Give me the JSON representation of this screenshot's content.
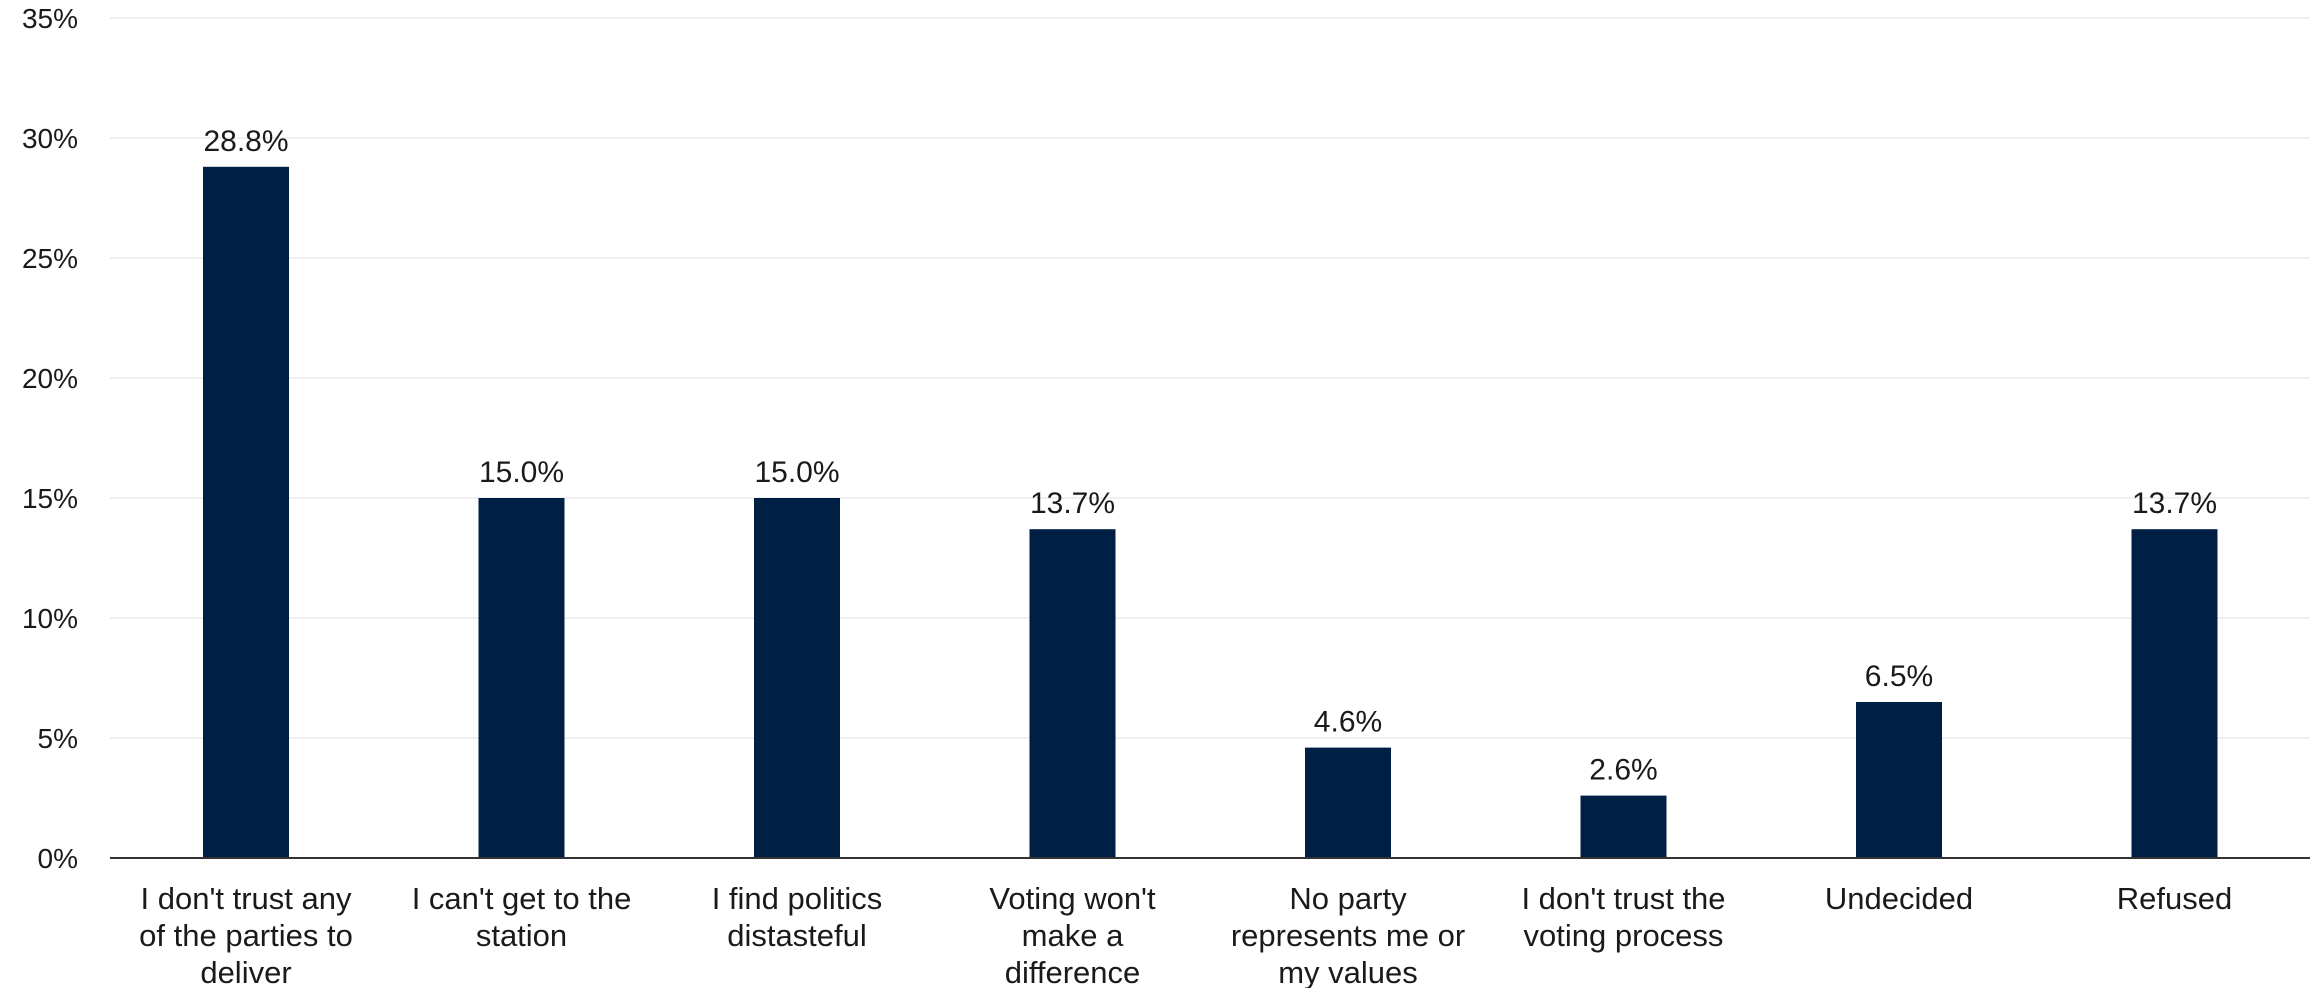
{
  "chart_data": {
    "type": "bar",
    "title": "",
    "xlabel": "",
    "ylabel": "",
    "categories": [
      [
        "I don't trust any",
        "of the parties to",
        "deliver"
      ],
      [
        "I can't get to the",
        "station"
      ],
      [
        "I find politics",
        "distasteful"
      ],
      [
        "Voting won't",
        "make a",
        "difference"
      ],
      [
        "No party",
        "represents me or",
        "my values"
      ],
      [
        "I don't trust the",
        "voting process"
      ],
      [
        "Undecided"
      ],
      [
        "Refused"
      ]
    ],
    "values": [
      28.8,
      15.0,
      15.0,
      13.7,
      4.6,
      2.6,
      6.5,
      13.7
    ],
    "data_labels": [
      "28.8%",
      "15.0%",
      "15.0%",
      "13.7%",
      "4.6%",
      "2.6%",
      "6.5%",
      "13.7%"
    ],
    "ylim": [
      0,
      35
    ],
    "yticks": [
      0,
      5,
      10,
      15,
      20,
      25,
      30,
      35
    ],
    "ytick_labels": [
      "0%",
      "5%",
      "10%",
      "15%",
      "20%",
      "25%",
      "30%",
      "35%"
    ],
    "grid": true,
    "bar_color": "#001f45"
  }
}
